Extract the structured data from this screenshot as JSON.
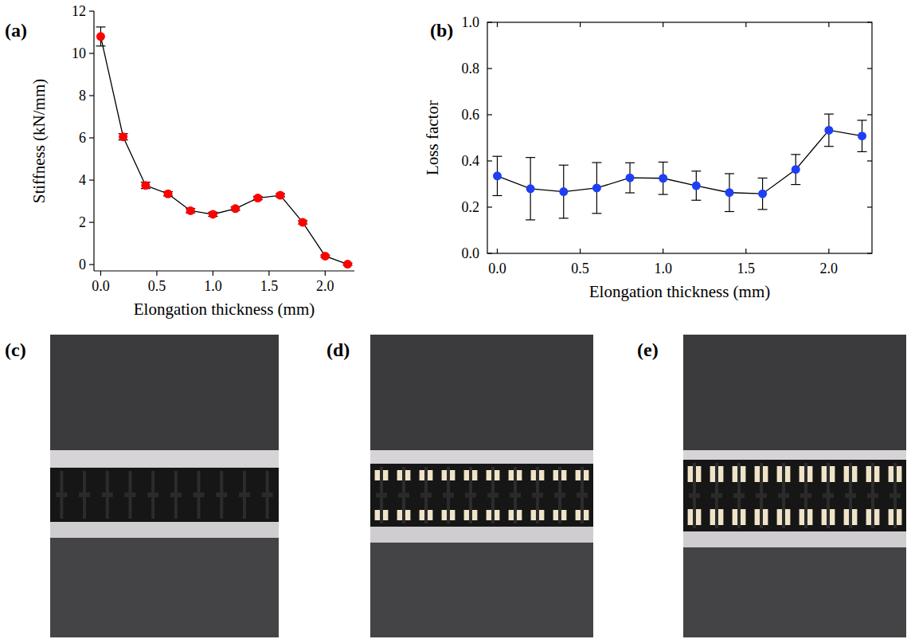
{
  "chart_data": [
    {
      "type": "line",
      "label": "(a)",
      "x_label": "Elongation thickness (mm)",
      "y_label": "Stiffness (kN/mm)",
      "x": [
        0,
        0.2,
        0.4,
        0.6,
        0.8,
        1.0,
        1.2,
        1.4,
        1.6,
        1.8,
        2.0,
        2.2
      ],
      "series": [
        {
          "color": "#ff0000",
          "marker": "circle",
          "line_style": "solid",
          "values": [
            10.8,
            6.05,
            3.75,
            3.35,
            2.55,
            2.38,
            2.65,
            3.15,
            3.28,
            2.0,
            0.4,
            0.02
          ],
          "errors": [
            0.45,
            0.15,
            0.15,
            0.1,
            0.1,
            0.1,
            0.08,
            0.08,
            0.08,
            0.08,
            0.05,
            0.05
          ]
        }
      ],
      "xlim": [
        -0.06,
        2.26
      ],
      "xticks": [
        {
          "value": 0,
          "label": "0.0"
        },
        {
          "value": 0.5,
          "label": "0.5"
        },
        {
          "value": 1.0,
          "label": "1.0"
        },
        {
          "value": 1.5,
          "label": "1.5"
        },
        {
          "value": 2.0,
          "label": "2.0"
        }
      ],
      "ylim": [
        -0.3,
        12
      ],
      "yticks": [
        0,
        2,
        4,
        6,
        8,
        10,
        12
      ],
      "grid": false
    },
    {
      "type": "line",
      "label": "(b)",
      "x_label": "Elongation thickness (mm)",
      "y_label": "Loss factor",
      "x": [
        0,
        0.2,
        0.4,
        0.6,
        0.8,
        1.0,
        1.2,
        1.4,
        1.6,
        1.8,
        2.0,
        2.2
      ],
      "series": [
        {
          "color": "#1f3ff5",
          "marker": "circle",
          "line_style": "solid",
          "values": [
            0.335,
            0.28,
            0.267,
            0.283,
            0.327,
            0.325,
            0.293,
            0.263,
            0.258,
            0.363,
            0.533,
            0.508
          ],
          "errors": [
            0.085,
            0.135,
            0.115,
            0.11,
            0.065,
            0.07,
            0.063,
            0.082,
            0.068,
            0.065,
            0.07,
            0.068
          ]
        }
      ],
      "xlim": [
        -0.06,
        2.26
      ],
      "xticks": [
        {
          "value": 0,
          "label": "0.0"
        },
        {
          "value": 0.5,
          "label": "0.5"
        },
        {
          "value": 1.0,
          "label": "1.0"
        },
        {
          "value": 1.5,
          "label": "1.5"
        },
        {
          "value": 2.0,
          "label": "2.0"
        }
      ],
      "ylim": [
        0,
        1
      ],
      "yticks": [
        {
          "value": 0,
          "label": "0.0"
        },
        {
          "value": 0.2,
          "label": "0.2"
        },
        {
          "value": 0.4,
          "label": "0.4"
        },
        {
          "value": 0.6,
          "label": "0.6"
        },
        {
          "value": 0.8,
          "label": "0.8"
        },
        {
          "value": 1.0,
          "label": "1.0"
        }
      ],
      "grid": false
    }
  ],
  "images": [
    {
      "label": "(c)"
    },
    {
      "label": "(d)"
    },
    {
      "label": "(e)"
    }
  ]
}
